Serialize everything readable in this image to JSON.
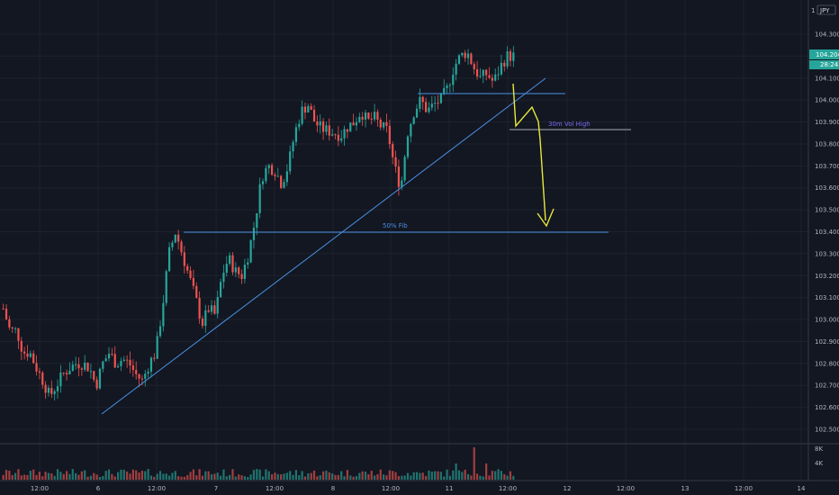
{
  "chart_data": {
    "type": "candlestick",
    "currency_label": "JPY",
    "scale_marker": "1",
    "y_ticks": [
      "104.300",
      "104.200",
      "104.100",
      "104.000",
      "103.900",
      "103.800",
      "103.700",
      "103.600",
      "103.500",
      "103.400",
      "103.300",
      "103.200",
      "103.100",
      "103.000",
      "102.900",
      "102.800",
      "102.700",
      "102.600",
      "102.500"
    ],
    "y_tick_values": [
      104.3,
      104.2,
      104.1,
      104.0,
      103.9,
      103.8,
      103.7,
      103.6,
      103.5,
      103.4,
      103.3,
      103.2,
      103.1,
      103.0,
      102.9,
      102.8,
      102.7,
      102.6,
      102.5
    ],
    "x_ticks": [
      "12:00",
      "6",
      "12:00",
      "7",
      "12:00",
      "8",
      "12:00",
      "11",
      "12:00",
      "12",
      "12:00",
      "13",
      "12:00",
      "14"
    ],
    "volume_ticks": [
      "8K",
      "4K"
    ],
    "current_price": "104.204",
    "countdown": "28:24",
    "colors": {
      "background": "#131722",
      "up": "#26a69a",
      "down": "#ef5350",
      "line": "#4a90e2",
      "vol_high": "#7b68ee",
      "arrow": "#e8e83a",
      "price_tag": "#26a69a"
    },
    "annotations": {
      "fib_label": "50% Fib",
      "vol_high_label": "30m Vol High"
    },
    "fib_level": 103.4,
    "vol_high_level": 103.87,
    "resistance_level": 104.03,
    "close_path": [
      103.05,
      102.95,
      102.95,
      102.85,
      102.85,
      102.78,
      102.72,
      102.65,
      102.7,
      102.75,
      102.78,
      102.8,
      102.8,
      102.78,
      102.7,
      102.8,
      102.85,
      102.8,
      102.82,
      102.8,
      102.75,
      102.72,
      102.8,
      102.85,
      103.05,
      103.3,
      103.4,
      103.3,
      103.2,
      103.1,
      102.98,
      103.05,
      103.02,
      103.2,
      103.28,
      103.22,
      103.2,
      103.3,
      103.45,
      103.65,
      103.7,
      103.68,
      103.62,
      103.7,
      103.85,
      103.95,
      103.98,
      103.9,
      103.87,
      103.86,
      103.85,
      103.84,
      103.88,
      103.9,
      103.95,
      103.9,
      103.92,
      103.88,
      103.86,
      103.7,
      103.6,
      103.85,
      103.95,
      104.0,
      103.95,
      103.98,
      104.0,
      104.05,
      104.15,
      104.2,
      104.22,
      104.15,
      104.1,
      104.12,
      104.08,
      104.15,
      104.2,
      104.2
    ]
  }
}
